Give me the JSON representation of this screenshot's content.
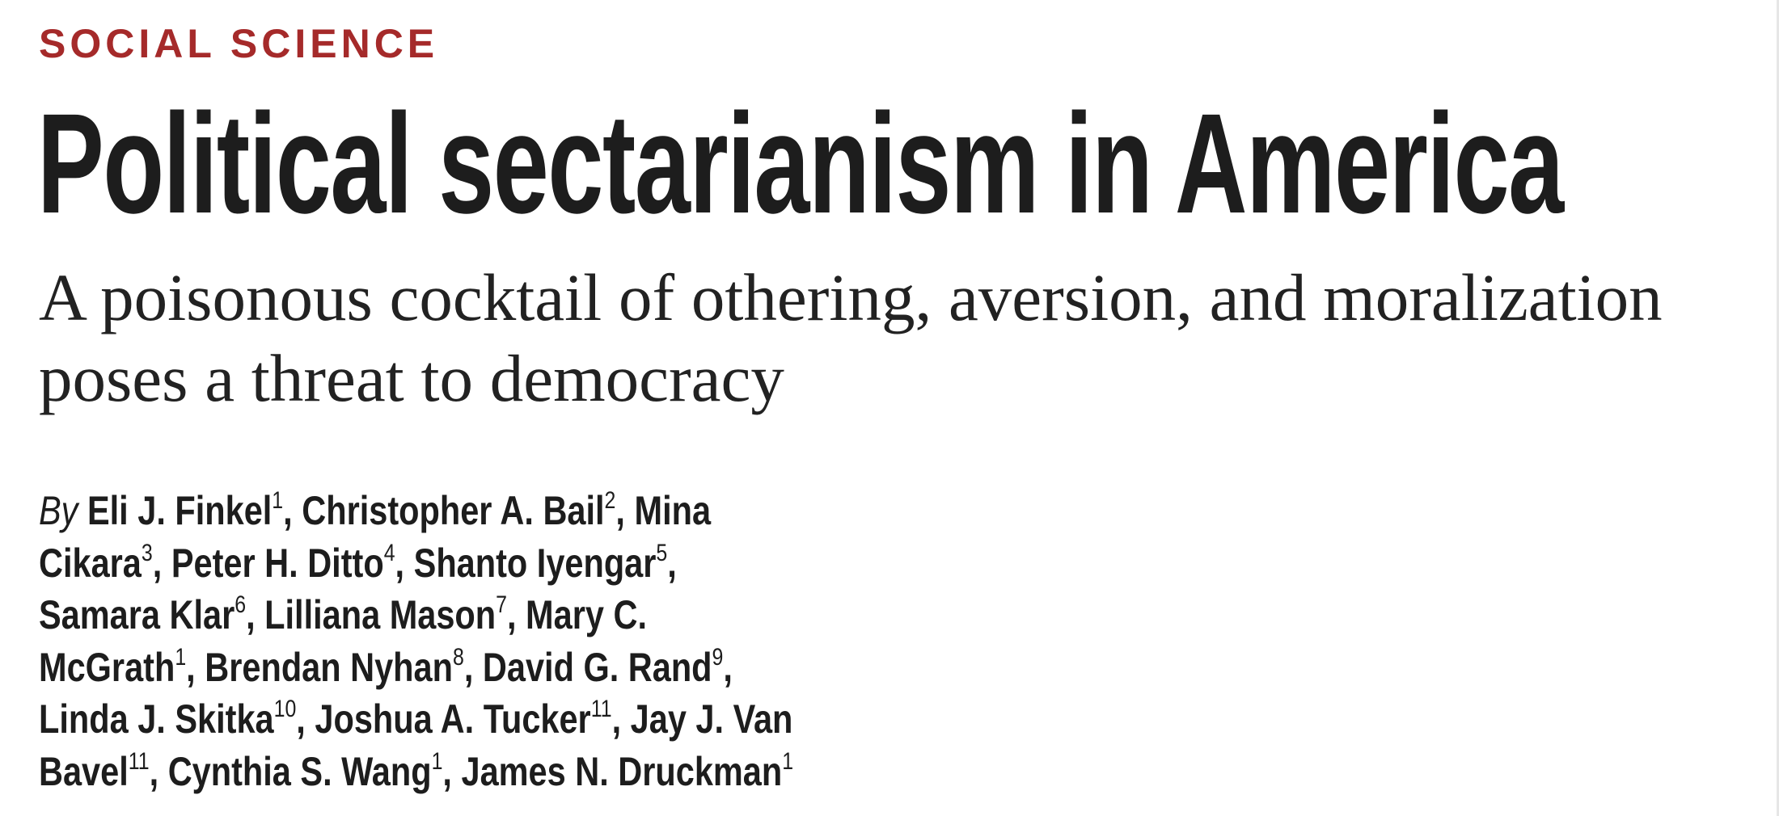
{
  "section": "SOCIAL SCIENCE",
  "title": "Political sectarianism in America",
  "subtitle": {
    "line1": "A poisonous cocktail of othering, aversion, and moralization",
    "line2": "poses a threat to democracy"
  },
  "byline": {
    "prefix": "By",
    "authors": [
      {
        "name": "Eli J. Finkel",
        "aff": "1"
      },
      {
        "name": "Christopher A. Bail",
        "aff": "2"
      },
      {
        "name": "Mina Cikara",
        "aff": "3"
      },
      {
        "name": "Peter H. Ditto",
        "aff": "4"
      },
      {
        "name": "Shanto Iyengar",
        "aff": "5"
      },
      {
        "name": "Samara Klar",
        "aff": "6"
      },
      {
        "name": "Lilliana Mason",
        "aff": "7"
      },
      {
        "name": "Mary C. McGrath",
        "aff": "1"
      },
      {
        "name": "Brendan Nyhan",
        "aff": "8"
      },
      {
        "name": "David G. Rand",
        "aff": "9"
      },
      {
        "name": "Linda J. Skitka",
        "aff": "10"
      },
      {
        "name": "Joshua A. Tucker",
        "aff": "11"
      },
      {
        "name": "Jay J. Van Bavel",
        "aff": "11"
      },
      {
        "name": "Cynthia S. Wang",
        "aff": "1"
      },
      {
        "name": "James N. Druckman",
        "aff": "1"
      }
    ],
    "lines": [
      [
        {
          "t": "Eli J. Finkel",
          "s": "1",
          "sep": ","
        },
        {
          "t": "Christopher A. Bail",
          "s": "2",
          "sep": ","
        },
        {
          "t": "Mina",
          "s": "",
          "sep": ""
        }
      ],
      [
        {
          "t": "Cikara",
          "s": "3",
          "sep": ","
        },
        {
          "t": "Peter H. Ditto",
          "s": "4",
          "sep": ","
        },
        {
          "t": "Shanto Iyengar",
          "s": "5",
          "sep": ","
        }
      ],
      [
        {
          "t": "Samara Klar",
          "s": "6",
          "sep": ","
        },
        {
          "t": "Lilliana Mason",
          "s": "7",
          "sep": ","
        },
        {
          "t": "Mary C.",
          "s": "",
          "sep": ""
        }
      ],
      [
        {
          "t": "McGrath",
          "s": "1",
          "sep": ","
        },
        {
          "t": "Brendan Nyhan",
          "s": "8",
          "sep": ","
        },
        {
          "t": "David G. Rand",
          "s": "9",
          "sep": ","
        }
      ],
      [
        {
          "t": "Linda J. Skitka",
          "s": "10",
          "sep": ","
        },
        {
          "t": "Joshua A. Tucker",
          "s": "11",
          "sep": ","
        },
        {
          "t": "Jay J. Van",
          "s": "",
          "sep": ""
        }
      ],
      [
        {
          "t": "Bavel",
          "s": "11",
          "sep": ","
        },
        {
          "t": "Cynthia S. Wang",
          "s": "1",
          "sep": ","
        },
        {
          "t": "James N. Druckman",
          "s": "1",
          "sep": ""
        }
      ]
    ]
  },
  "colors": {
    "section": "#a52a2a",
    "title": "#1d1d1d",
    "text": "#222222"
  }
}
